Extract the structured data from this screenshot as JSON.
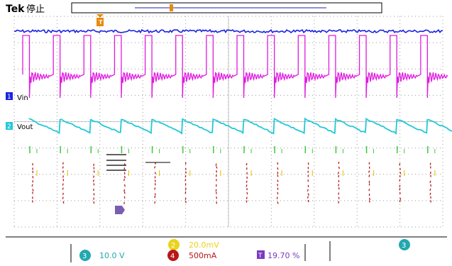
{
  "header": {
    "brand": "Tek",
    "run_state": "停止",
    "trigger_marker": "T"
  },
  "channel_labels": [
    {
      "num": "1",
      "name": "Vin",
      "color": "#1a22e0"
    },
    {
      "num": "2",
      "name": "Vout",
      "color": "#22c8d8"
    }
  ],
  "status": {
    "ch2_badge": "2",
    "ch2_scale": "20.0mV",
    "ch3_badge": "3",
    "ch3_scale": "10.0 V",
    "ch4_badge": "4",
    "ch4_scale": "500mA",
    "trigger_badge": "T",
    "trigger_level": "19.70 %",
    "right_badge": "3"
  },
  "colors": {
    "ch1": "#1a22e0",
    "ch2": "#22c8d8",
    "ch3": "#e01ae0",
    "ch4": "#b81818",
    "trigger": "#e88a0a",
    "grid": "#9a9a9a"
  },
  "chart_data": {
    "type": "line",
    "title": "",
    "grid": true,
    "divisions": {
      "horizontal": 10,
      "vertical": 8
    },
    "series": [
      {
        "name": "Vin",
        "channel": 1,
        "shape": "flat with noise",
        "level_div": 3.5
      },
      {
        "name": "",
        "channel": 3,
        "shape": "square pulses with ringing",
        "periods_shown": 14
      },
      {
        "name": "Vout",
        "channel": 2,
        "shape": "sawtooth ripple",
        "periods_shown": 14
      },
      {
        "name": "",
        "channel": 4,
        "shape": "current spikes",
        "periods_shown": 14
      }
    ]
  }
}
